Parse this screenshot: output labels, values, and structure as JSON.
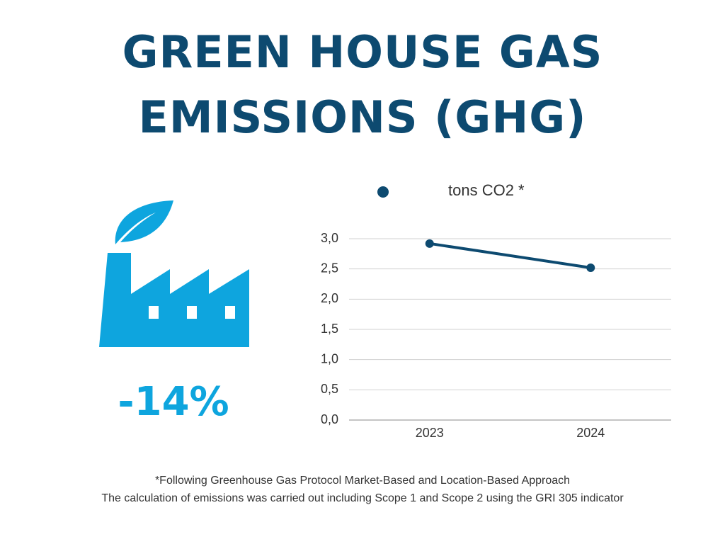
{
  "title": "GREEN HOUSE GAS EMISSIONS (GHG)",
  "kpi": "-14%",
  "notes": [
    "*Following Greenhouse Gas Protocol Market-Based and Location-Based Approach",
    "The calculation of emissions was carried out including Scope 1 and Scope 2 using the GRI 305 indicator"
  ],
  "chart_data": {
    "type": "line",
    "categories": [
      "2023",
      "2024"
    ],
    "series": [
      {
        "name": "tons CO2 *",
        "color": "#0d4a70",
        "values": [
          2.92,
          2.52
        ]
      }
    ],
    "ylim": [
      0,
      3
    ],
    "yticks": [
      {
        "value": 0,
        "label": "0,0"
      },
      {
        "value": 0.5,
        "label": "0,5"
      },
      {
        "value": 1,
        "label": "1,0"
      },
      {
        "value": 1.5,
        "label": "1,5"
      },
      {
        "value": 2,
        "label": "2,0"
      },
      {
        "value": 2.5,
        "label": "2,5"
      },
      {
        "value": 3,
        "label": "3,0"
      }
    ],
    "grid": true,
    "legend": "top"
  }
}
